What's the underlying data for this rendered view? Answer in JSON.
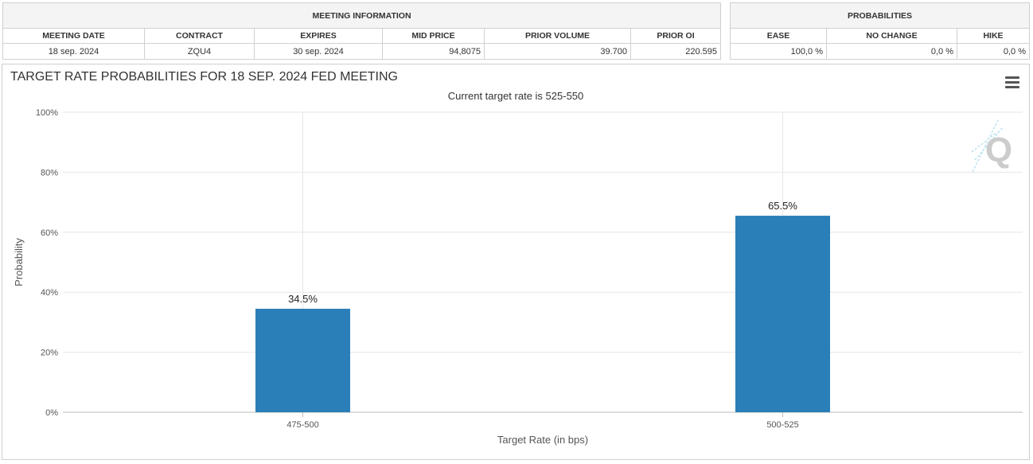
{
  "meeting_info": {
    "group_label": "MEETING INFORMATION",
    "headers": [
      "MEETING DATE",
      "CONTRACT",
      "EXPIRES",
      "MID PRICE",
      "PRIOR VOLUME",
      "PRIOR OI"
    ],
    "values": [
      "18 sep. 2024",
      "ZQU4",
      "30 sep. 2024",
      "94,8075",
      "39.700",
      "220.595"
    ]
  },
  "probabilities": {
    "group_label": "PROBABILITIES",
    "headers": [
      "EASE",
      "NO CHANGE",
      "HIKE"
    ],
    "values": [
      "100,0 %",
      "0,0 %",
      "0,0 %"
    ]
  },
  "chart": {
    "title": "TARGET RATE PROBABILITIES FOR 18 SEP. 2024 FED MEETING",
    "subtitle": "Current target rate is 525-550",
    "menu_icon": "hamburger-menu-icon",
    "watermark_icon": "q-logo-watermark"
  },
  "chart_data": {
    "type": "bar",
    "title": "TARGET RATE PROBABILITIES FOR 18 SEP. 2024 FED MEETING",
    "subtitle": "Current target rate is 525-550",
    "categories": [
      "475-500",
      "500-525"
    ],
    "values": [
      34.5,
      65.5
    ],
    "data_labels": [
      "34.5%",
      "65.5%"
    ],
    "xlabel": "Target Rate (in bps)",
    "ylabel": "Probability",
    "ylim": [
      0,
      100
    ],
    "yticks": [
      0,
      20,
      40,
      60,
      80,
      100
    ],
    "ytick_labels": [
      "0%",
      "20%",
      "40%",
      "60%",
      "80%",
      "100%"
    ],
    "grid": true,
    "bar_color": "#2a7fb8"
  }
}
